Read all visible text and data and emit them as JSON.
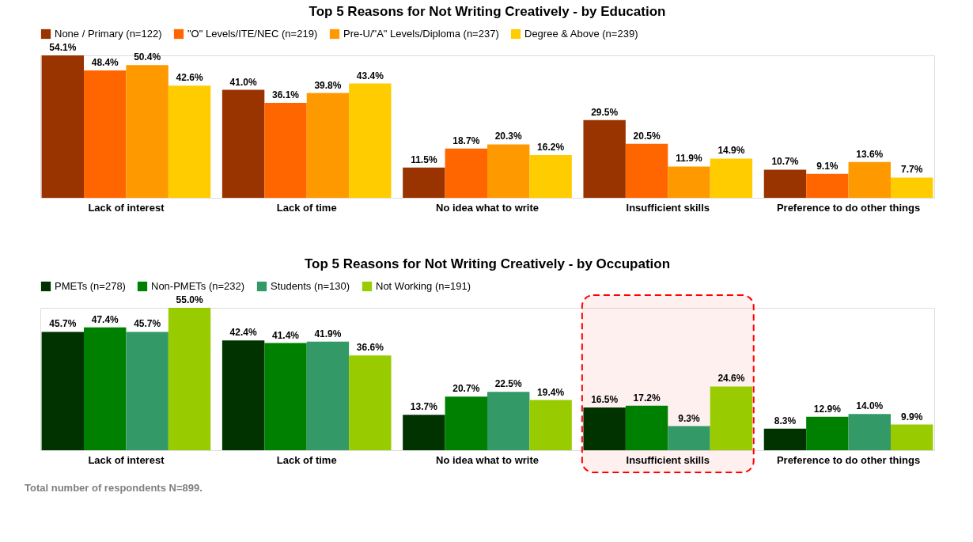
{
  "chart_data": [
    {
      "type": "bar",
      "title": "Top 5 Reasons for Not Writing Creatively - by Education",
      "categories": [
        "Lack of interest",
        "Lack of time",
        "No idea what to write",
        "Insufficient skills",
        "Preference to do other things"
      ],
      "legend": "top",
      "series": [
        {
          "name": "None / Primary (n=122)",
          "color": "#993300",
          "values": [
            54.1,
            41.0,
            11.5,
            29.5,
            10.7
          ],
          "value_labels": [
            "54.1%",
            "41.0%",
            "11.5%",
            "29.5%",
            "10.7%"
          ]
        },
        {
          "name": "\"O\" Levels/ITE/NEC (n=219)",
          "color": "#ff6600",
          "values": [
            48.4,
            36.1,
            18.7,
            20.5,
            9.1
          ],
          "value_labels": [
            "48.4%",
            "36.1%",
            "18.7%",
            "20.5%",
            "9.1%"
          ]
        },
        {
          "name": "Pre-U/\"A\" Levels/Diploma (n=237)",
          "color": "#ff9900",
          "values": [
            50.4,
            39.8,
            20.3,
            11.9,
            13.6
          ],
          "value_labels": [
            "50.4%",
            "39.8%",
            "20.3%",
            "11.9%",
            "13.6%"
          ]
        },
        {
          "name": "Degree & Above (n=239)",
          "color": "#ffcc00",
          "values": [
            42.6,
            43.4,
            16.2,
            14.9,
            7.7
          ],
          "value_labels": [
            "42.6%",
            "43.4%",
            "16.2%",
            "14.9%",
            "7.7%"
          ]
        }
      ]
    },
    {
      "type": "bar",
      "title": "Top 5 Reasons for Not Writing Creatively - by Occupation",
      "categories": [
        "Lack of interest",
        "Lack of time",
        "No idea what to write",
        "Insufficient skills",
        "Preference to do other things"
      ],
      "legend": "top",
      "series": [
        {
          "name": "PMETs (n=278)",
          "color": "#003300",
          "values": [
            45.7,
            42.4,
            13.7,
            16.5,
            8.3
          ],
          "value_labels": [
            "45.7%",
            "42.4%",
            "13.7%",
            "16.5%",
            "8.3%"
          ]
        },
        {
          "name": "Non-PMETs (n=232)",
          "color": "#008000",
          "values": [
            47.4,
            41.4,
            20.7,
            17.2,
            12.9
          ],
          "value_labels": [
            "47.4%",
            "41.4%",
            "20.7%",
            "17.2%",
            "12.9%"
          ]
        },
        {
          "name": "Students (n=130)",
          "color": "#339966",
          "values": [
            45.7,
            41.9,
            22.5,
            9.3,
            14.0
          ],
          "value_labels": [
            "45.7%",
            "41.9%",
            "22.5%",
            "9.3%",
            "14.0%"
          ]
        },
        {
          "name": "Not Working (n=191)",
          "color": "#99cc00",
          "values": [
            55.0,
            36.6,
            19.4,
            24.6,
            9.9
          ],
          "value_labels": [
            "55.0%",
            "36.6%",
            "19.4%",
            "24.6%",
            "9.9%"
          ]
        }
      ],
      "bands": [
        {
          "axis": "x",
          "from": "Insufficient skills",
          "to": "Insufficient skills",
          "color": "#ff0000"
        }
      ],
      "annotations": [
        "Total number of respondents N=899."
      ]
    }
  ]
}
